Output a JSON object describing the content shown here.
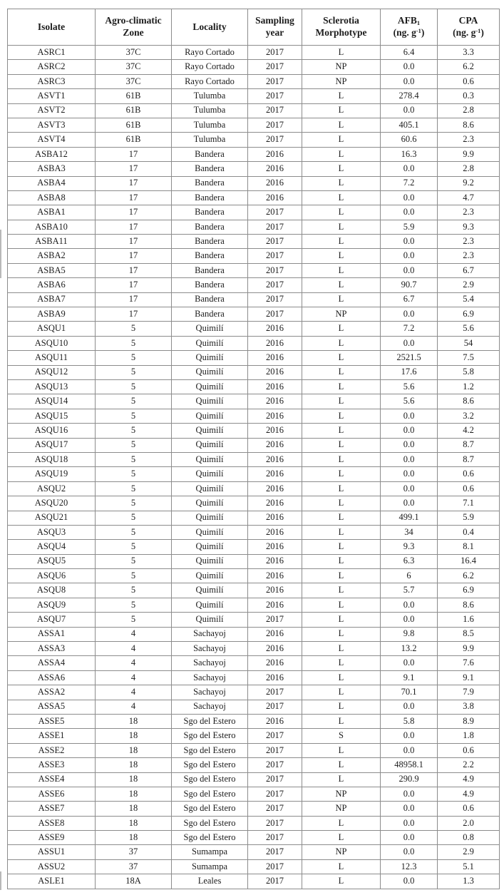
{
  "table": {
    "header": {
      "isolate": "Isolate",
      "zone_line1": "Agro-climatic",
      "zone_line2": "Zone",
      "locality": "Locality",
      "year_line1": "Sampling",
      "year_line2": "year",
      "morph_line1": "Sclerotia",
      "morph_line2": "Morphotype",
      "afb_name": "AFB",
      "afb_sub": "1",
      "afb_unit_open": "(ng. g",
      "afb_sup": "-1",
      "afb_unit_close": ")",
      "cpa_name": "CPA",
      "cpa_unit_open": "(ng. g",
      "cpa_sup": "-1",
      "cpa_unit_close": ")"
    },
    "border_color": "#8c8c8c",
    "text_color": "#1c1c1c",
    "rows": [
      [
        "ASRC1",
        "37C",
        "Rayo Cortado",
        "2017",
        "L",
        "6.4",
        "3.3"
      ],
      [
        "ASRC2",
        "37C",
        "Rayo Cortado",
        "2017",
        "NP",
        "0.0",
        "6.2"
      ],
      [
        "ASRC3",
        "37C",
        "Rayo Cortado",
        "2017",
        "NP",
        "0.0",
        "0.6"
      ],
      [
        "ASVT1",
        "61B",
        "Tulumba",
        "2017",
        "L",
        "278.4",
        "0.3"
      ],
      [
        "ASVT2",
        "61B",
        "Tulumba",
        "2017",
        "L",
        "0.0",
        "2.8"
      ],
      [
        "ASVT3",
        "61B",
        "Tulumba",
        "2017",
        "L",
        "405.1",
        "8.6"
      ],
      [
        "ASVT4",
        "61B",
        "Tulumba",
        "2017",
        "L",
        "60.6",
        "2.3"
      ],
      [
        "ASBA12",
        "17",
        "Bandera",
        "2016",
        "L",
        "16.3",
        "9.9"
      ],
      [
        "ASBA3",
        "17",
        "Bandera",
        "2016",
        "L",
        "0.0",
        "2.8"
      ],
      [
        "ASBA4",
        "17",
        "Bandera",
        "2016",
        "L",
        "7.2",
        "9.2"
      ],
      [
        "ASBA8",
        "17",
        "Bandera",
        "2016",
        "L",
        "0.0",
        "4.7"
      ],
      [
        "ASBA1",
        "17",
        "Bandera",
        "2017",
        "L",
        "0.0",
        "2.3"
      ],
      [
        "ASBA10",
        "17",
        "Bandera",
        "2017",
        "L",
        "5.9",
        "9.3"
      ],
      [
        "ASBA11",
        "17",
        "Bandera",
        "2017",
        "L",
        "0.0",
        "2.3"
      ],
      [
        "ASBA2",
        "17",
        "Bandera",
        "2017",
        "L",
        "0.0",
        "2.3"
      ],
      [
        "ASBA5",
        "17",
        "Bandera",
        "2017",
        "L",
        "0.0",
        "6.7"
      ],
      [
        "ASBA6",
        "17",
        "Bandera",
        "2017",
        "L",
        "90.7",
        "2.9"
      ],
      [
        "ASBA7",
        "17",
        "Bandera",
        "2017",
        "L",
        "6.7",
        "5.4"
      ],
      [
        "ASBA9",
        "17",
        "Bandera",
        "2017",
        "NP",
        "0.0",
        "6.9"
      ],
      [
        "ASQU1",
        "5",
        "Quimilí",
        "2016",
        "L",
        "7.2",
        "5.6"
      ],
      [
        "ASQU10",
        "5",
        "Quimilí",
        "2016",
        "L",
        "0.0",
        "54"
      ],
      [
        "ASQU11",
        "5",
        "Quimilí",
        "2016",
        "L",
        "2521.5",
        "7.5"
      ],
      [
        "ASQU12",
        "5",
        "Quimilí",
        "2016",
        "L",
        "17.6",
        "5.8"
      ],
      [
        "ASQU13",
        "5",
        "Quimilí",
        "2016",
        "L",
        "5.6",
        "1.2"
      ],
      [
        "ASQU14",
        "5",
        "Quimilí",
        "2016",
        "L",
        "5.6",
        "8.6"
      ],
      [
        "ASQU15",
        "5",
        "Quimilí",
        "2016",
        "L",
        "0.0",
        "3.2"
      ],
      [
        "ASQU16",
        "5",
        "Quimilí",
        "2016",
        "L",
        "0.0",
        "4.2"
      ],
      [
        "ASQU17",
        "5",
        "Quimilí",
        "2016",
        "L",
        "0.0",
        "8.7"
      ],
      [
        "ASQU18",
        "5",
        "Quimilí",
        "2016",
        "L",
        "0.0",
        "8.7"
      ],
      [
        "ASQU19",
        "5",
        "Quimilí",
        "2016",
        "L",
        "0.0",
        "0.6"
      ],
      [
        "ASQU2",
        "5",
        "Quimilí",
        "2016",
        "L",
        "0.0",
        "0.6"
      ],
      [
        "ASQU20",
        "5",
        "Quimilí",
        "2016",
        "L",
        "0.0",
        "7.1"
      ],
      [
        "ASQU21",
        "5",
        "Quimilí",
        "2016",
        "L",
        "499.1",
        "5.9"
      ],
      [
        "ASQU3",
        "5",
        "Quimilí",
        "2016",
        "L",
        "34",
        "0.4"
      ],
      [
        "ASQU4",
        "5",
        "Quimilí",
        "2016",
        "L",
        "9.3",
        "8.1"
      ],
      [
        "ASQU5",
        "5",
        "Quimilí",
        "2016",
        "L",
        "6.3",
        "16.4"
      ],
      [
        "ASQU6",
        "5",
        "Quimilí",
        "2016",
        "L",
        "6",
        "6.2"
      ],
      [
        "ASQU8",
        "5",
        "Quimilí",
        "2016",
        "L",
        "5.7",
        "6.9"
      ],
      [
        "ASQU9",
        "5",
        "Quimilí",
        "2016",
        "L",
        "0.0",
        "8.6"
      ],
      [
        "ASQU7",
        "5",
        "Quimilí",
        "2017",
        "L",
        "0.0",
        "1.6"
      ],
      [
        "ASSA1",
        "4",
        "Sachayoj",
        "2016",
        "L",
        "9.8",
        "8.5"
      ],
      [
        "ASSA3",
        "4",
        "Sachayoj",
        "2016",
        "L",
        "13.2",
        "9.9"
      ],
      [
        "ASSA4",
        "4",
        "Sachayoj",
        "2016",
        "L",
        "0.0",
        "7.6"
      ],
      [
        "ASSA6",
        "4",
        "Sachayoj",
        "2016",
        "L",
        "9.1",
        "9.1"
      ],
      [
        "ASSA2",
        "4",
        "Sachayoj",
        "2017",
        "L",
        "70.1",
        "7.9"
      ],
      [
        "ASSA5",
        "4",
        "Sachayoj",
        "2017",
        "L",
        "0.0",
        "3.8"
      ],
      [
        "ASSE5",
        "18",
        "Sgo del Estero",
        "2016",
        "L",
        "5.8",
        "8.9"
      ],
      [
        "ASSE1",
        "18",
        "Sgo del Estero",
        "2017",
        "S",
        "0.0",
        "1.8"
      ],
      [
        "ASSE2",
        "18",
        "Sgo del Estero",
        "2017",
        "L",
        "0.0",
        "0.6"
      ],
      [
        "ASSE3",
        "18",
        "Sgo del Estero",
        "2017",
        "L",
        "48958.1",
        "2.2"
      ],
      [
        "ASSE4",
        "18",
        "Sgo del Estero",
        "2017",
        "L",
        "290.9",
        "4.9"
      ],
      [
        "ASSE6",
        "18",
        "Sgo del Estero",
        "2017",
        "NP",
        "0.0",
        "4.9"
      ],
      [
        "ASSE7",
        "18",
        "Sgo del Estero",
        "2017",
        "NP",
        "0.0",
        "0.6"
      ],
      [
        "ASSE8",
        "18",
        "Sgo del Estero",
        "2017",
        "L",
        "0.0",
        "2.0"
      ],
      [
        "ASSE9",
        "18",
        "Sgo del Estero",
        "2017",
        "L",
        "0.0",
        "0.8"
      ],
      [
        "ASSU1",
        "37",
        "Sumampa",
        "2017",
        "NP",
        "0.0",
        "2.9"
      ],
      [
        "ASSU2",
        "37",
        "Sumampa",
        "2017",
        "L",
        "12.3",
        "5.1"
      ],
      [
        "ASLE1",
        "18A",
        "Leales",
        "2017",
        "L",
        "0.0",
        "1.3"
      ]
    ]
  }
}
